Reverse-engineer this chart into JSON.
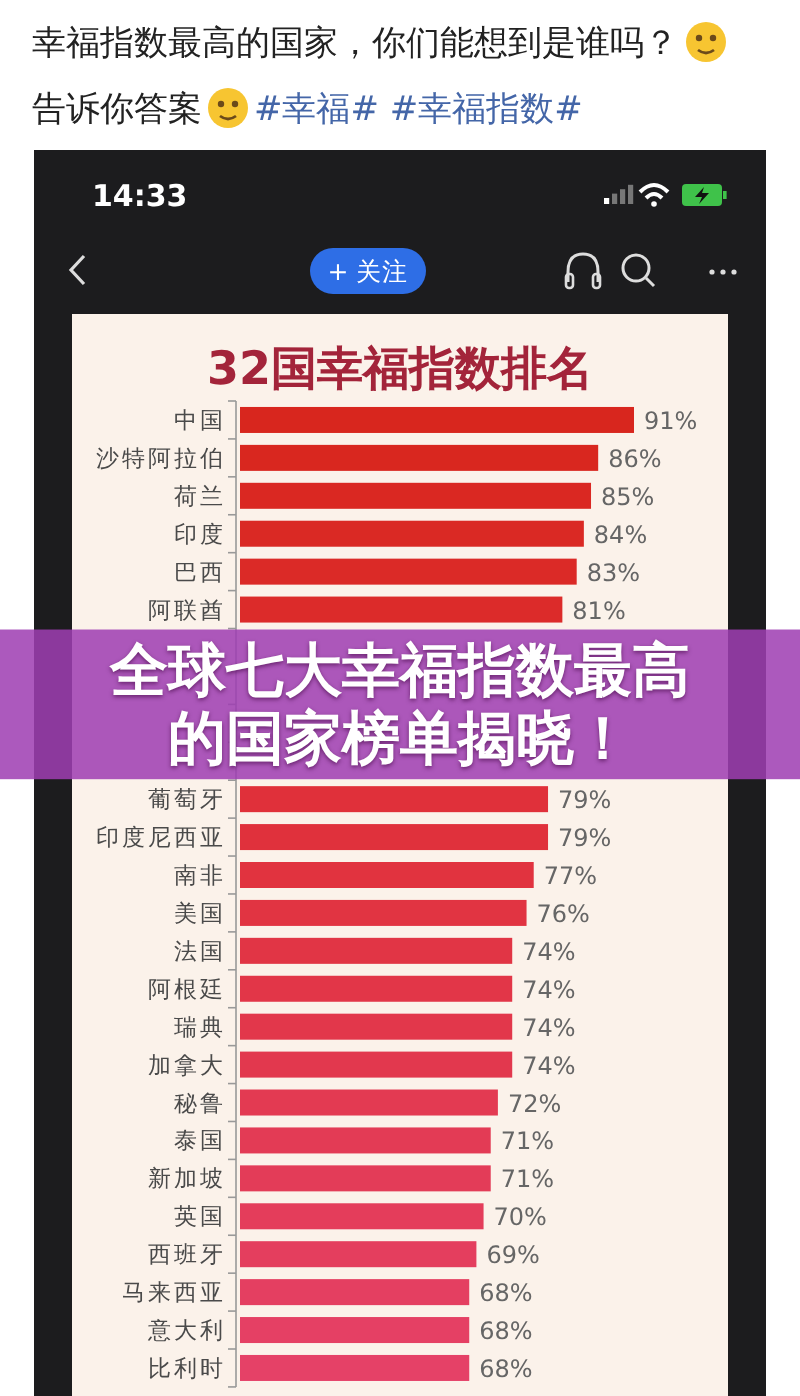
{
  "chart_data": {
    "type": "bar",
    "orientation": "horizontal",
    "title": "32国幸福指数排名",
    "subtitle": "幸福指数最高的国家，你们能想到是谁吗？",
    "annotations": [
      "告诉你答案",
      "#幸福# #幸福指数#",
      "14:33",
      "+ 关注",
      "全球七大幸福指数最高的国家榜单揭晓！"
    ],
    "categories": [
      "中国",
      "沙特阿拉伯",
      "荷兰",
      "印度",
      "巴西",
      "阿联酋",
      null,
      null,
      null,
      null,
      "葡萄牙",
      "印度尼西亚",
      "南非",
      "美国",
      "法国",
      "阿根廷",
      "瑞典",
      "加拿大",
      "秘鲁",
      "泰国",
      "新加坡",
      "英国",
      "西班牙",
      "马来西亚",
      "意大利",
      "比利时"
    ],
    "values": [
      91,
      86,
      85,
      84,
      83,
      81,
      null,
      null,
      null,
      null,
      79,
      79,
      77,
      76,
      74,
      74,
      74,
      74,
      72,
      71,
      71,
      70,
      69,
      68,
      68,
      68
    ],
    "value_labels": [
      "91%",
      "86%",
      "85%",
      "84%",
      "83%",
      "81%",
      null,
      null,
      null,
      null,
      "79%",
      "79%",
      "77%",
      "76%",
      "74%",
      "74%",
      "74%",
      "74%",
      "72%",
      "71%",
      "71%",
      "70%",
      "69%",
      "68%",
      "68%",
      "68%"
    ],
    "colors": [
      "#d8261e",
      "#d9271f",
      "#da2822",
      "#da2924",
      "#db2a27",
      "#dc2b2a",
      null,
      null,
      null,
      null,
      "#e0303a",
      "#e0313c",
      "#e1333f",
      "#e13442",
      "#e13545",
      "#e23648",
      "#e2374b",
      "#e2384e",
      "#e33a52",
      "#e33b55",
      "#e33c58",
      "#e43d5b",
      "#e43e5e",
      "#e43f61",
      "#e54064",
      "#e54167"
    ],
    "xlim": [
      36,
      91
    ],
    "tick_labels": "y"
  }
}
